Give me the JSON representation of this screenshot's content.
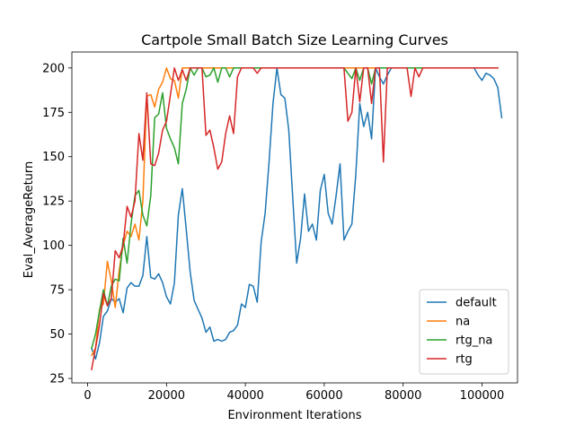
{
  "chart_data": {
    "type": "line",
    "title": "Cartpole Small Batch Size Learning Curves",
    "xlabel": "Environment Iterations",
    "ylabel": "Eval_AverageReturn",
    "xlim": [
      -4000,
      109000
    ],
    "ylim": [
      22.5,
      209
    ],
    "xticks": [
      0,
      20000,
      40000,
      60000,
      80000,
      100000
    ],
    "yticks": [
      25,
      50,
      75,
      100,
      125,
      150,
      175,
      200
    ],
    "legend_position": "lower-right",
    "grid": false,
    "series": [
      {
        "name": "default",
        "color": "#1f77b4",
        "x": [
          1000,
          2000,
          3000,
          4000,
          5000,
          6000,
          7000,
          8000,
          9000,
          10000,
          11000,
          12000,
          13000,
          14000,
          15000,
          16000,
          17000,
          18000,
          19000,
          20000,
          21000,
          22000,
          23000,
          24000,
          25000,
          26000,
          27000,
          28000,
          29000,
          30000,
          31000,
          32000,
          33000,
          34000,
          35000,
          36000,
          37000,
          38000,
          39000,
          40000,
          41000,
          42000,
          43000,
          44000,
          45000,
          46000,
          47000,
          48000,
          49000,
          50000,
          51000,
          52000,
          53000,
          54000,
          55000,
          56000,
          57000,
          58000,
          59000,
          60000,
          61000,
          62000,
          63000,
          64000,
          65000,
          66000,
          67000,
          68000,
          69000,
          70000,
          71000,
          72000,
          73000,
          74000,
          75000,
          76000,
          77000,
          78000,
          79000,
          80000,
          81000,
          82000,
          83000,
          84000,
          85000,
          86000,
          87000,
          88000,
          89000,
          90000,
          91000,
          92000,
          93000,
          94000,
          95000,
          96000,
          97000,
          98000,
          99000,
          100000,
          101000,
          102000,
          103000,
          104000,
          105000
        ],
        "y": [
          42,
          36,
          45,
          60,
          63,
          70,
          68,
          70,
          62,
          76,
          79,
          77,
          77,
          83,
          105,
          82,
          81,
          84,
          79,
          71,
          67,
          79,
          117,
          132,
          109,
          85,
          69,
          64,
          59,
          51,
          54,
          46,
          47,
          46,
          47,
          51,
          52,
          55,
          67,
          65,
          78,
          77,
          68,
          102,
          118,
          147,
          180,
          200,
          185,
          183,
          165,
          127,
          90,
          104,
          129,
          108,
          112,
          103,
          131,
          140,
          118,
          112,
          128,
          146,
          103,
          108,
          112,
          140,
          180,
          167,
          175,
          160,
          200,
          195,
          191,
          196,
          200,
          200,
          200,
          200,
          200,
          200,
          200,
          200,
          200,
          200,
          200,
          200,
          200,
          200,
          200,
          200,
          200,
          200,
          200,
          200,
          200,
          200,
          196,
          193,
          197,
          196,
          194,
          189,
          172
        ]
      },
      {
        "name": "na",
        "color": "#ff7f0e",
        "x": [
          1000,
          2000,
          3000,
          4000,
          5000,
          6000,
          7000,
          8000,
          9000,
          10000,
          11000,
          12000,
          13000,
          14000,
          15000,
          16000,
          17000,
          18000,
          19000,
          20000,
          21000,
          22000,
          23000,
          24000,
          25000,
          26000,
          27000,
          28000,
          29000,
          30000,
          31000,
          32000,
          33000,
          34000,
          35000,
          36000,
          37000,
          38000,
          39000,
          40000,
          45000,
          50000,
          55000,
          60000,
          65000,
          70000,
          75000,
          80000,
          85000,
          90000,
          95000,
          100000,
          104000
        ],
        "y": [
          38,
          42,
          64,
          67,
          91,
          80,
          65,
          86,
          100,
          108,
          105,
          112,
          103,
          125,
          184,
          185,
          178,
          188,
          192,
          200,
          194,
          193,
          183,
          200,
          200,
          200,
          200,
          200,
          200,
          200,
          200,
          200,
          200,
          200,
          200,
          200,
          200,
          200,
          200,
          200,
          200,
          200,
          200,
          200,
          200,
          200,
          200,
          200,
          200,
          200,
          200,
          200,
          200
        ]
      },
      {
        "name": "rtg_na",
        "color": "#2ca02c",
        "x": [
          1000,
          2000,
          3000,
          4000,
          5000,
          6000,
          7000,
          8000,
          9000,
          10000,
          11000,
          12000,
          13000,
          14000,
          15000,
          16000,
          17000,
          18000,
          19000,
          20000,
          21000,
          22000,
          23000,
          24000,
          25000,
          26000,
          27000,
          28000,
          29000,
          30000,
          31000,
          32000,
          33000,
          34000,
          35000,
          36000,
          37000,
          38000,
          39000,
          40000,
          45000,
          50000,
          55000,
          60000,
          65000,
          66000,
          67000,
          68000,
          69000,
          70000,
          71000,
          72000,
          73000,
          74000,
          75000,
          80000,
          85000,
          90000,
          95000,
          100000,
          104000
        ],
        "y": [
          42,
          50,
          63,
          75,
          66,
          77,
          81,
          80,
          104,
          90,
          112,
          128,
          131,
          117,
          111,
          128,
          172,
          174,
          186,
          166,
          160,
          155,
          146,
          180,
          188,
          200,
          196,
          200,
          200,
          195,
          196,
          200,
          192,
          200,
          200,
          195,
          200,
          200,
          200,
          200,
          200,
          200,
          200,
          200,
          200,
          197,
          194,
          200,
          193,
          200,
          200,
          191,
          200,
          200,
          200,
          200,
          200,
          200,
          200,
          200,
          200
        ]
      },
      {
        "name": "rtg",
        "color": "#d62728",
        "x": [
          1000,
          2000,
          3000,
          4000,
          5000,
          6000,
          7000,
          8000,
          9000,
          10000,
          11000,
          12000,
          13000,
          14000,
          15000,
          16000,
          17000,
          18000,
          19000,
          20000,
          21000,
          22000,
          23000,
          24000,
          25000,
          26000,
          27000,
          28000,
          29000,
          30000,
          31000,
          32000,
          33000,
          34000,
          35000,
          36000,
          37000,
          38000,
          39000,
          40000,
          41000,
          42000,
          43000,
          44000,
          45000,
          50000,
          55000,
          60000,
          65000,
          66000,
          67000,
          68000,
          69000,
          70000,
          71000,
          72000,
          73000,
          74000,
          75000,
          76000,
          77000,
          78000,
          79000,
          80000,
          81000,
          82000,
          83000,
          84000,
          85000,
          90000,
          95000,
          100000,
          104000
        ],
        "y": [
          30,
          42,
          55,
          73,
          66,
          70,
          97,
          93,
          100,
          122,
          116,
          125,
          163,
          148,
          186,
          146,
          145,
          152,
          165,
          170,
          185,
          200,
          193,
          199,
          193,
          200,
          200,
          200,
          200,
          162,
          165,
          155,
          143,
          147,
          163,
          173,
          163,
          195,
          200,
          200,
          200,
          200,
          197,
          200,
          200,
          200,
          200,
          200,
          200,
          170,
          175,
          200,
          181,
          200,
          200,
          180,
          200,
          200,
          147,
          200,
          200,
          200,
          200,
          200,
          200,
          184,
          200,
          195,
          200,
          200,
          200,
          200,
          200
        ]
      }
    ]
  }
}
